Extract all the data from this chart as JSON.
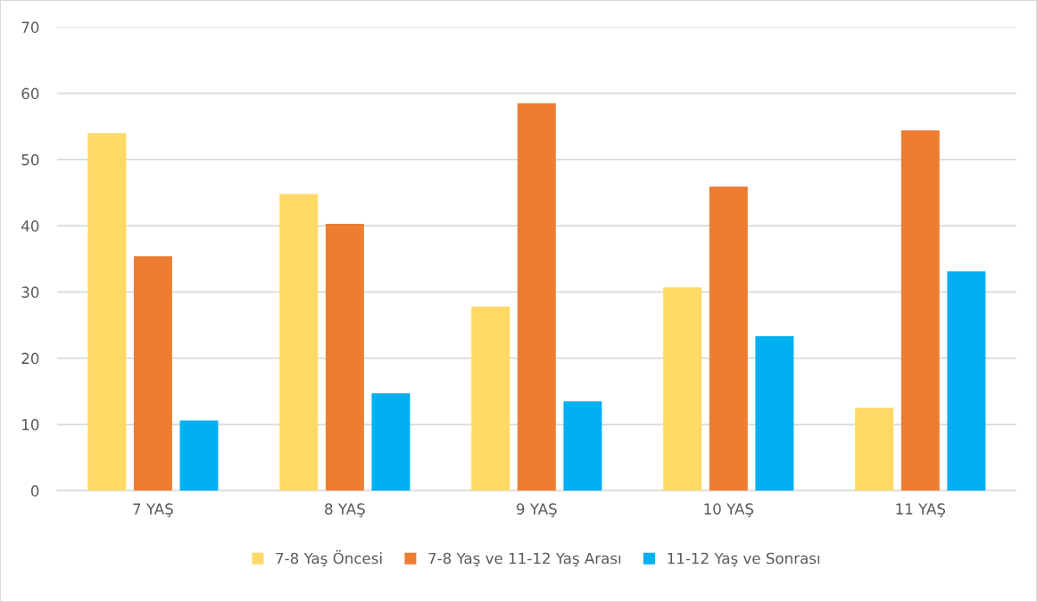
{
  "chart_data": {
    "type": "bar",
    "categories": [
      "7 YAŞ",
      "8 YAŞ",
      "9 YAŞ",
      "10 YAŞ",
      "11 YAŞ"
    ],
    "series": [
      {
        "name": "7-8 Yaş Öncesi",
        "color": "#ffd966",
        "values": [
          54.0,
          44.8,
          27.8,
          30.7,
          12.5
        ]
      },
      {
        "name": "7-8 Yaş ve 11-12 Yaş Arası",
        "color": "#ed7d31",
        "values": [
          35.4,
          40.3,
          58.5,
          45.9,
          54.4
        ]
      },
      {
        "name": "11-12 Yaş ve Sonrası",
        "color": "#00b0f0",
        "values": [
          10.6,
          14.7,
          13.5,
          23.3,
          33.1
        ]
      }
    ],
    "ylim": [
      0,
      70
    ],
    "yticks": [
      0,
      10,
      20,
      30,
      40,
      50,
      60,
      70
    ],
    "grid": "y",
    "legend": "bottom"
  }
}
